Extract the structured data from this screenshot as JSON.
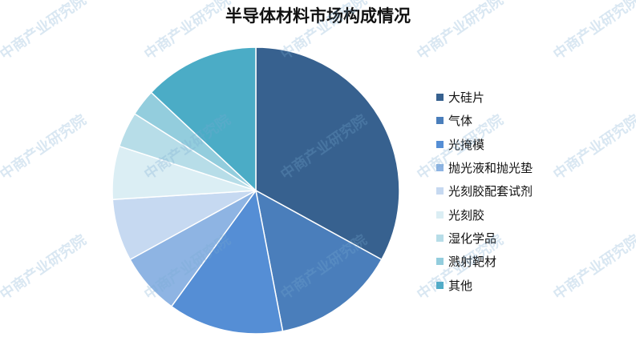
{
  "watermark": "中商产业研究院",
  "chart_data": {
    "type": "pie",
    "title": "半导体材料市场构成情况",
    "legend_position": "right",
    "start_angle": "12 o'clock, clockwise",
    "categories": [
      "大硅片",
      "气体",
      "光掩模",
      "抛光液和抛光垫",
      "光刻胶配套试剂",
      "光刻胶",
      "湿化学品",
      "溅射靶材",
      "其他"
    ],
    "values": [
      33,
      14,
      13,
      7,
      7,
      6,
      4,
      3,
      13
    ],
    "colors": [
      "#37618f",
      "#4a7ebb",
      "#558ed5",
      "#8eb4e3",
      "#c6d9f1",
      "#dbeef4",
      "#b7dde8",
      "#93cddd",
      "#4bacc6"
    ]
  }
}
